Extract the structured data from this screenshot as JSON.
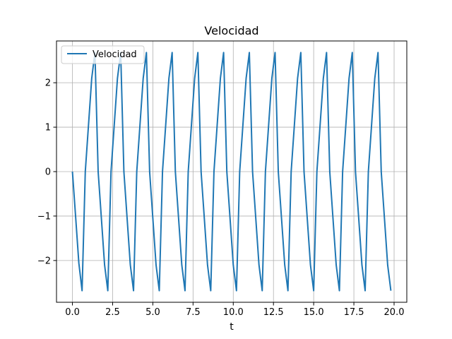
{
  "chart_data": {
    "type": "line",
    "title": "Velocidad",
    "xlabel": "t",
    "ylabel": "",
    "xlim": [
      -0.99,
      20.79
    ],
    "ylim": [
      -2.94,
      2.94
    ],
    "xticks": [
      0.0,
      2.5,
      5.0,
      7.5,
      10.0,
      12.5,
      15.0,
      17.5,
      20.0
    ],
    "xtick_labels": [
      "0.0",
      "2.5",
      "5.0",
      "7.5",
      "10.0",
      "12.5",
      "15.0",
      "17.5",
      "20.0"
    ],
    "yticks": [
      -2,
      -1,
      0,
      1,
      2
    ],
    "ytick_labels": [
      "−2",
      "−1",
      "0",
      "1",
      "2"
    ],
    "grid": true,
    "legend": {
      "placement": "top-left",
      "entries": [
        "Velocidad"
      ]
    },
    "series": [
      {
        "name": "Velocidad",
        "color": "#1f77b4",
        "x": [
          0.0,
          0.2,
          0.4,
          0.6,
          0.8,
          1.0,
          1.2,
          1.4,
          1.6,
          1.8,
          2.0,
          2.2,
          2.4,
          2.6,
          2.8,
          3.0,
          3.2,
          3.4,
          3.6,
          3.8,
          4.0,
          4.2,
          4.4,
          4.6,
          4.8,
          5.0,
          5.2,
          5.4,
          5.6,
          5.8,
          6.0,
          6.2,
          6.4,
          6.6,
          6.8,
          7.0,
          7.2,
          7.4,
          7.6,
          7.8,
          8.0,
          8.2,
          8.4,
          8.6,
          8.8,
          9.0,
          9.2,
          9.4,
          9.6,
          9.8,
          10.0,
          10.2,
          10.4,
          10.6,
          10.8,
          11.0,
          11.2,
          11.4,
          11.6,
          11.8,
          12.0,
          12.2,
          12.4,
          12.6,
          12.8,
          13.0,
          13.2,
          13.4,
          13.6,
          13.8,
          14.0,
          14.2,
          14.4,
          14.6,
          14.8,
          15.0,
          15.2,
          15.4,
          15.6,
          15.8,
          16.0,
          16.2,
          16.4,
          16.6,
          16.8,
          17.0,
          17.2,
          17.4,
          17.6,
          17.8,
          18.0,
          18.2,
          18.4,
          18.6,
          18.8,
          19.0,
          19.2,
          19.4,
          19.6,
          19.8
        ],
        "y": [
          0.0,
          -1.02,
          -2.06,
          -2.68,
          0.0,
          1.05,
          2.1,
          2.68,
          0.0,
          -1.05,
          -2.1,
          -2.68,
          0.0,
          1.05,
          2.1,
          2.68,
          0.0,
          -1.05,
          -2.1,
          -2.68,
          0.0,
          1.05,
          2.1,
          2.68,
          0.0,
          -1.05,
          -2.1,
          -2.68,
          0.0,
          1.05,
          2.1,
          2.68,
          0.0,
          -1.05,
          -2.1,
          -2.68,
          0.0,
          1.05,
          2.1,
          2.68,
          0.0,
          -1.05,
          -2.1,
          -2.68,
          0.0,
          1.05,
          2.1,
          2.68,
          0.0,
          -1.05,
          -2.1,
          -2.68,
          0.0,
          1.05,
          2.1,
          2.68,
          0.0,
          -1.05,
          -2.1,
          -2.68,
          0.0,
          1.05,
          2.1,
          2.68,
          0.0,
          -1.05,
          -2.1,
          -2.68,
          0.0,
          1.05,
          2.1,
          2.68,
          0.0,
          -1.05,
          -2.1,
          -2.68,
          0.0,
          1.05,
          2.1,
          2.68,
          0.0,
          -1.05,
          -2.1,
          -2.68,
          0.0,
          1.05,
          2.1,
          2.68,
          0.0,
          -1.05,
          -2.1,
          -2.68,
          0.0,
          1.05,
          2.1,
          2.68,
          0.0,
          -1.05,
          -2.1,
          -2.68
        ]
      }
    ]
  }
}
